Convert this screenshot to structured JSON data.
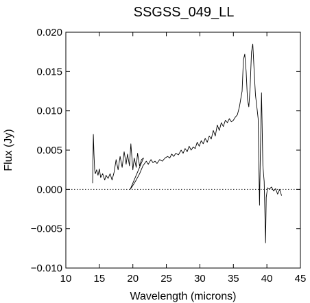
{
  "chart_data": {
    "type": "line",
    "title": "SSGSS_049_LL",
    "xlabel": "Wavelength (microns)",
    "ylabel": "Flux (Jy)",
    "xlim": [
      10,
      45
    ],
    "ylim": [
      -0.01,
      0.02
    ],
    "xticks": [
      10,
      15,
      20,
      25,
      30,
      35,
      40,
      45
    ],
    "xtick_labels": [
      "10",
      "15",
      "20",
      "25",
      "30",
      "35",
      "40",
      "45"
    ],
    "yticks": [
      -0.01,
      -0.005,
      0.0,
      0.005,
      0.01,
      0.015,
      0.02
    ],
    "ytick_labels": [
      "−0.010",
      "−0.005",
      "0.000",
      "0.005",
      "0.010",
      "0.015",
      "0.020"
    ],
    "reference_line": {
      "y": 0.0,
      "style": "dotted"
    },
    "grid": false,
    "series": [
      {
        "x": [
          14.0,
          14.1,
          14.2,
          14.3,
          14.4,
          14.6,
          14.8,
          15.0,
          15.2,
          15.5,
          15.8,
          16.0,
          16.3,
          16.6,
          16.9,
          17.2,
          17.5,
          17.8,
          18.1,
          18.4,
          18.7,
          19.0,
          19.2,
          19.5,
          19.7,
          20.0,
          20.2,
          20.5,
          20.7,
          21.0,
          21.3,
          21.6,
          19.6,
          20.0,
          20.5,
          21.0,
          21.5,
          22.0,
          22.3,
          22.7,
          23.0,
          23.3,
          23.6,
          24.0,
          24.4,
          24.8,
          25.2,
          25.5,
          25.8,
          26.1,
          26.4,
          26.8,
          27.2,
          27.5,
          27.8,
          28.1,
          28.4,
          28.7,
          29.0,
          29.3,
          29.6,
          29.9,
          30.2,
          30.5,
          30.8,
          31.1,
          31.4,
          31.7,
          32.0,
          32.3,
          32.6,
          32.9,
          33.2,
          33.5,
          33.8,
          34.1,
          34.4,
          34.7,
          35.0,
          35.3,
          35.6,
          35.9,
          36.1,
          36.3,
          36.5,
          36.7,
          36.9,
          37.1,
          37.3,
          37.5,
          37.7,
          37.9,
          38.1,
          38.3,
          38.5,
          38.7,
          38.9,
          39.0,
          39.2,
          39.4,
          39.6,
          39.8,
          39.9,
          40.1,
          40.4,
          40.7,
          41.0,
          41.3,
          41.6,
          41.9,
          42.2
        ],
        "values": [
          0.0008,
          0.007,
          0.0045,
          0.0025,
          0.002,
          0.0025,
          0.0018,
          0.0026,
          0.0015,
          0.002,
          0.0012,
          0.0018,
          0.0014,
          0.002,
          0.0012,
          0.0022,
          0.0038,
          0.0025,
          0.0042,
          0.0028,
          0.0048,
          0.0032,
          0.0045,
          0.003,
          0.0058,
          0.0025,
          0.004,
          0.0028,
          0.0046,
          0.003,
          0.0038,
          0.004,
          0.0,
          0.0005,
          0.0012,
          0.002,
          0.003,
          0.0036,
          0.0032,
          0.0038,
          0.0034,
          0.0036,
          0.0033,
          0.0038,
          0.0036,
          0.004,
          0.0042,
          0.004,
          0.0045,
          0.0042,
          0.0046,
          0.0044,
          0.005,
          0.0046,
          0.0052,
          0.0048,
          0.0055,
          0.005,
          0.0054,
          0.0052,
          0.006,
          0.0055,
          0.0062,
          0.0058,
          0.0065,
          0.006,
          0.0068,
          0.0064,
          0.0075,
          0.0068,
          0.0082,
          0.0075,
          0.0085,
          0.008,
          0.0088,
          0.0085,
          0.009,
          0.0086,
          0.0088,
          0.0092,
          0.0095,
          0.0105,
          0.0115,
          0.0125,
          0.0165,
          0.0172,
          0.015,
          0.0115,
          0.0105,
          0.013,
          0.0175,
          0.0185,
          0.015,
          0.012,
          0.0105,
          0.009,
          -0.002,
          0.0035,
          0.0123,
          0.003,
          0.001,
          -0.0068,
          -0.001,
          0.0002,
          0.0001,
          0.0003,
          -0.0002,
          0.0001,
          -0.0006,
          0.0,
          -0.0008
        ]
      }
    ]
  }
}
